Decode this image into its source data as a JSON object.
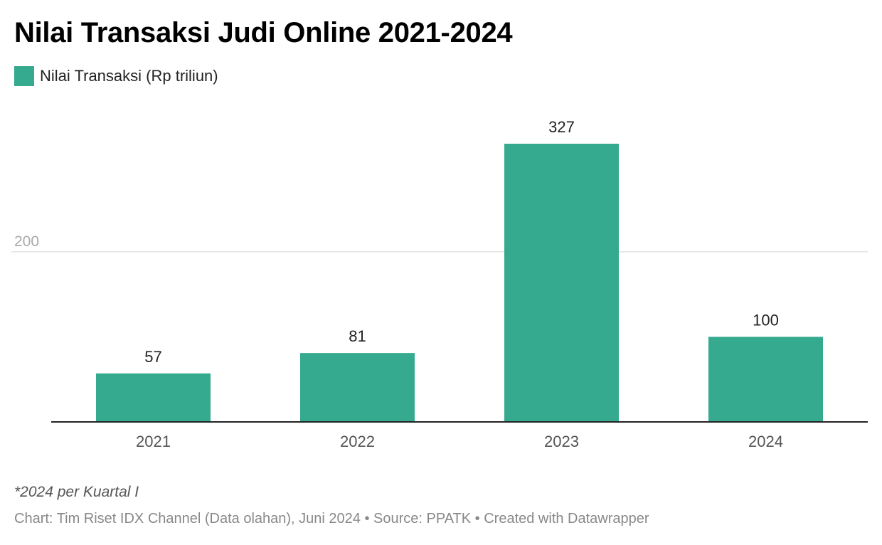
{
  "title": "Nilai Transaksi Judi Online 2021-2024",
  "legend": {
    "label": "Nilai Transaksi (Rp triliun)"
  },
  "colors": {
    "bar": "#35aa8f",
    "grid": "#e3e3e3",
    "axis": "#222222",
    "tick_text": "#aaaaaa",
    "category_text": "#555555",
    "value_text": "#222222"
  },
  "chart_data": {
    "type": "bar",
    "categories": [
      "2021",
      "2022",
      "2023",
      "2024"
    ],
    "series": [
      {
        "name": "Nilai Transaksi (Rp triliun)",
        "values": [
          57,
          81,
          327,
          100
        ]
      }
    ],
    "ylim": [
      0,
      327
    ],
    "yticks": [
      200
    ],
    "grid": true,
    "data_labels": true,
    "legend_position": "top-left"
  },
  "footnote": "*2024 per Kuartal I",
  "credit": "Chart: Tim Riset IDX Channel (Data olahan), Juni 2024 • Source: PPATK • Created with Datawrapper"
}
